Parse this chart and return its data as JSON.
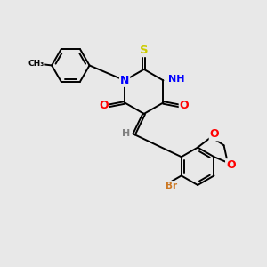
{
  "background_color": "#e8e8e8",
  "bond_color": "#000000",
  "atom_colors": {
    "N": "#0000ff",
    "O": "#ff0000",
    "S": "#cccc00",
    "Br": "#cc7722",
    "H": "#808080",
    "C": "#000000"
  },
  "fig_width": 3.0,
  "fig_height": 3.0,
  "dpi": 100
}
